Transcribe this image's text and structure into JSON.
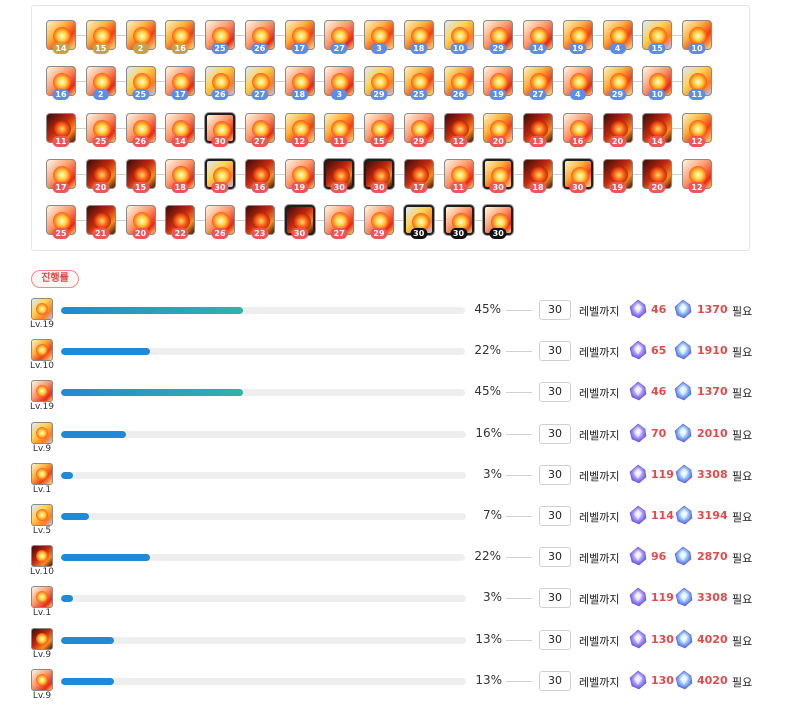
{
  "grid": {
    "rows": [
      [
        {
          "level": "14",
          "badge": "gold",
          "icon": "fire-mace-icon",
          "tone": "t1"
        },
        {
          "level": "15",
          "badge": "gold",
          "icon": "fire-mace-icon",
          "tone": "t1"
        },
        {
          "level": "2",
          "badge": "gold",
          "icon": "fireball-icon",
          "tone": "t1"
        },
        {
          "level": "16",
          "badge": "gold",
          "icon": "fire-mace-icon",
          "tone": "t1"
        },
        {
          "level": "25",
          "badge": "blue",
          "icon": "fire-wings-icon",
          "tone": "t2"
        },
        {
          "level": "26",
          "badge": "blue",
          "icon": "fire-wings-icon",
          "tone": "t2"
        },
        {
          "level": "17",
          "badge": "blue",
          "icon": "fire-mace-icon",
          "tone": "t1"
        },
        {
          "level": "27",
          "badge": "blue",
          "icon": "fire-wings-icon",
          "tone": "t2"
        },
        {
          "level": "3",
          "badge": "blue",
          "icon": "fireball-icon",
          "tone": "t1"
        },
        {
          "level": "18",
          "badge": "blue",
          "icon": "fire-mace-icon",
          "tone": "t1"
        },
        {
          "level": "10",
          "badge": "blue",
          "icon": "flame-burst-icon",
          "tone": "t3"
        },
        {
          "level": "29",
          "badge": "blue",
          "icon": "fire-wings-icon",
          "tone": "t2"
        },
        {
          "level": "14",
          "badge": "blue",
          "icon": "fire-spirit-icon",
          "tone": "t2"
        },
        {
          "level": "19",
          "badge": "blue",
          "icon": "fire-mace-icon",
          "tone": "t1"
        },
        {
          "level": "4",
          "badge": "blue",
          "icon": "fireball-icon",
          "tone": "t1"
        },
        {
          "level": "15",
          "badge": "blue",
          "icon": "flame-burst-icon",
          "tone": "t3"
        },
        {
          "level": "10",
          "badge": "blue",
          "icon": "fireball-icon",
          "tone": "t1"
        }
      ],
      [
        {
          "level": "16",
          "badge": "blue",
          "icon": "fire-spirit-icon",
          "tone": "t2"
        },
        {
          "level": "2",
          "badge": "blue",
          "icon": "fire-spirit-icon",
          "tone": "t2"
        },
        {
          "level": "25",
          "badge": "blue",
          "icon": "flame-burst-icon",
          "tone": "t3"
        },
        {
          "level": "17",
          "badge": "blue",
          "icon": "fire-spirit-icon",
          "tone": "t2"
        },
        {
          "level": "26",
          "badge": "blue",
          "icon": "flame-burst-icon",
          "tone": "t3"
        },
        {
          "level": "27",
          "badge": "blue",
          "icon": "flame-burst-icon",
          "tone": "t3"
        },
        {
          "level": "18",
          "badge": "blue",
          "icon": "fire-spirit-icon",
          "tone": "t2"
        },
        {
          "level": "3",
          "badge": "blue",
          "icon": "fire-spirit-icon",
          "tone": "t2"
        },
        {
          "level": "29",
          "badge": "blue",
          "icon": "flame-burst-icon",
          "tone": "t3"
        },
        {
          "level": "25",
          "badge": "blue",
          "icon": "fire-mace-icon",
          "tone": "t1"
        },
        {
          "level": "26",
          "badge": "blue",
          "icon": "fire-mace-icon",
          "tone": "t1"
        },
        {
          "level": "19",
          "badge": "blue",
          "icon": "fire-spirit-icon",
          "tone": "t2"
        },
        {
          "level": "27",
          "badge": "blue",
          "icon": "fire-mace-icon",
          "tone": "t1"
        },
        {
          "level": "4",
          "badge": "blue",
          "icon": "fire-spirit-icon",
          "tone": "t2"
        },
        {
          "level": "29",
          "badge": "blue",
          "icon": "fire-mace-icon",
          "tone": "t1"
        },
        {
          "level": "10",
          "badge": "blue",
          "icon": "fire-spirit-icon",
          "tone": "t2"
        },
        {
          "level": "11",
          "badge": "blue",
          "icon": "flame-burst-icon",
          "tone": "t3"
        }
      ],
      [
        {
          "level": "11",
          "badge": "red",
          "icon": "fire-orb-icon",
          "tone": "t4"
        },
        {
          "level": "25",
          "badge": "red",
          "icon": "fire-spirit-icon",
          "tone": "t2"
        },
        {
          "level": "26",
          "badge": "red",
          "icon": "fire-spirit-icon",
          "tone": "t2"
        },
        {
          "level": "14",
          "badge": "red",
          "icon": "fire-spirit-icon",
          "tone": "t2"
        },
        {
          "level": "30",
          "badge": "red",
          "icon": "fire-wings-icon",
          "tone": "t2",
          "max": true
        },
        {
          "level": "27",
          "badge": "red",
          "icon": "fire-spirit-icon",
          "tone": "t2"
        },
        {
          "level": "12",
          "badge": "red",
          "icon": "fire-claw-icon",
          "tone": "t1"
        },
        {
          "level": "11",
          "badge": "red",
          "icon": "fireball-icon",
          "tone": "t1"
        },
        {
          "level": "15",
          "badge": "red",
          "icon": "fire-spirit-icon",
          "tone": "t2"
        },
        {
          "level": "29",
          "badge": "red",
          "icon": "fire-spirit-icon",
          "tone": "t2"
        },
        {
          "level": "12",
          "badge": "red",
          "icon": "fire-orb-icon",
          "tone": "t4"
        },
        {
          "level": "20",
          "badge": "red",
          "icon": "fire-claw-icon",
          "tone": "t1"
        },
        {
          "level": "13",
          "badge": "red",
          "icon": "phoenix-icon",
          "tone": "t4"
        },
        {
          "level": "16",
          "badge": "red",
          "icon": "fire-spirit-icon",
          "tone": "t2"
        },
        {
          "level": "20",
          "badge": "red",
          "icon": "fire-orb-icon",
          "tone": "t4"
        },
        {
          "level": "14",
          "badge": "red",
          "icon": "phoenix-icon",
          "tone": "t4"
        },
        {
          "level": "12",
          "badge": "red",
          "icon": "fireball-icon",
          "tone": "t1"
        }
      ],
      [
        {
          "level": "17",
          "badge": "red",
          "icon": "fire-spirit-icon",
          "tone": "t2"
        },
        {
          "level": "20",
          "badge": "red",
          "icon": "phoenix-icon",
          "tone": "t4"
        },
        {
          "level": "15",
          "badge": "red",
          "icon": "phoenix-icon",
          "tone": "t4"
        },
        {
          "level": "18",
          "badge": "red",
          "icon": "fire-spirit-icon",
          "tone": "t2"
        },
        {
          "level": "30",
          "badge": "red",
          "icon": "flame-burst-icon",
          "tone": "t3",
          "max": true
        },
        {
          "level": "16",
          "badge": "red",
          "icon": "phoenix-icon",
          "tone": "t4"
        },
        {
          "level": "19",
          "badge": "red",
          "icon": "fire-spirit-icon",
          "tone": "t2"
        },
        {
          "level": "30",
          "badge": "red",
          "icon": "fire-orb-icon",
          "tone": "t4",
          "max": true
        },
        {
          "level": "30",
          "badge": "red",
          "icon": "fire-orb-icon",
          "tone": "t4",
          "max": true
        },
        {
          "level": "17",
          "badge": "red",
          "icon": "phoenix-icon",
          "tone": "t4"
        },
        {
          "level": "11",
          "badge": "red",
          "icon": "fire-spirit-icon",
          "tone": "t2"
        },
        {
          "level": "30",
          "badge": "red",
          "icon": "fireball-icon",
          "tone": "t1",
          "max": true
        },
        {
          "level": "18",
          "badge": "red",
          "icon": "phoenix-icon",
          "tone": "t4"
        },
        {
          "level": "30",
          "badge": "red",
          "icon": "fire-mace-icon",
          "tone": "t1",
          "max": true
        },
        {
          "level": "19",
          "badge": "red",
          "icon": "phoenix-icon",
          "tone": "t4"
        },
        {
          "level": "20",
          "badge": "red",
          "icon": "phoenix-icon",
          "tone": "t4"
        },
        {
          "level": "12",
          "badge": "red",
          "icon": "fire-spirit-icon",
          "tone": "t2"
        }
      ],
      [
        {
          "level": "25",
          "badge": "red",
          "icon": "fire-spirit-icon",
          "tone": "t2"
        },
        {
          "level": "21",
          "badge": "red",
          "icon": "phoenix-icon",
          "tone": "t4"
        },
        {
          "level": "20",
          "badge": "red",
          "icon": "fire-spirit-icon",
          "tone": "t2"
        },
        {
          "level": "22",
          "badge": "red",
          "icon": "phoenix-icon",
          "tone": "t4"
        },
        {
          "level": "26",
          "badge": "red",
          "icon": "fire-spirit-icon",
          "tone": "t2"
        },
        {
          "level": "23",
          "badge": "red",
          "icon": "phoenix-icon",
          "tone": "t4"
        },
        {
          "level": "30",
          "badge": "red",
          "icon": "phoenix-icon",
          "tone": "t4",
          "max": true
        },
        {
          "level": "27",
          "badge": "red",
          "icon": "fire-spirit-icon",
          "tone": "t2"
        },
        {
          "level": "29",
          "badge": "red",
          "icon": "fire-spirit-icon",
          "tone": "t2"
        },
        {
          "level": "30",
          "badge": "black",
          "icon": "flame-burst-icon",
          "tone": "t3",
          "max": true
        },
        {
          "level": "30",
          "badge": "black",
          "icon": "fire-spirit-icon",
          "tone": "t2",
          "max": true
        },
        {
          "level": "30",
          "badge": "black",
          "icon": "fire-spirit-icon",
          "tone": "t2",
          "max": true
        }
      ]
    ]
  },
  "progress": {
    "label": "진행률",
    "target_level": "30",
    "until_text": "레벨까지",
    "need_text": "필요",
    "gem_a_icon": "sol-erda-icon",
    "gem_b_icon": "sol-erda-fragment-icon",
    "rows": [
      {
        "icon": "flame-burst-icon",
        "tone": "t3",
        "lv": "Lv.19",
        "percent": 45,
        "percent_text": "45%",
        "gem_a": "46",
        "gem_b": "1370",
        "bar": "teal"
      },
      {
        "icon": "fire-mace-icon",
        "tone": "t1",
        "lv": "Lv.10",
        "percent": 22,
        "percent_text": "22%",
        "gem_a": "65",
        "gem_b": "1910",
        "bar": "blue"
      },
      {
        "icon": "fire-wings-icon",
        "tone": "t2",
        "lv": "Lv.19",
        "percent": 45,
        "percent_text": "45%",
        "gem_a": "46",
        "gem_b": "1370",
        "bar": "teal"
      },
      {
        "icon": "fire-spirit-icon",
        "tone": "t3",
        "lv": "Lv.9",
        "percent": 16,
        "percent_text": "16%",
        "gem_a": "70",
        "gem_b": "2010",
        "bar": "blue"
      },
      {
        "icon": "fireball-icon",
        "tone": "t1",
        "lv": "Lv.1",
        "percent": 3,
        "percent_text": "3%",
        "gem_a": "119",
        "gem_b": "3308",
        "bar": "blue"
      },
      {
        "icon": "fire-claw-icon",
        "tone": "t3",
        "lv": "Lv.5",
        "percent": 7,
        "percent_text": "7%",
        "gem_a": "114",
        "gem_b": "3194",
        "bar": "blue"
      },
      {
        "icon": "fire-orb-icon",
        "tone": "t4",
        "lv": "Lv.10",
        "percent": 22,
        "percent_text": "22%",
        "gem_a": "96",
        "gem_b": "2870",
        "bar": "blue"
      },
      {
        "icon": "fire-spirit-icon",
        "tone": "t2",
        "lv": "Lv.1",
        "percent": 3,
        "percent_text": "3%",
        "gem_a": "119",
        "gem_b": "3308",
        "bar": "blue"
      },
      {
        "icon": "phoenix-icon",
        "tone": "t4",
        "lv": "Lv.9",
        "percent": 13,
        "percent_text": "13%",
        "gem_a": "130",
        "gem_b": "4020",
        "bar": "blue"
      },
      {
        "icon": "fire-spirit-icon",
        "tone": "t2",
        "lv": "Lv.9",
        "percent": 13,
        "percent_text": "13%",
        "gem_a": "130",
        "gem_b": "4020",
        "bar": "blue"
      }
    ]
  }
}
